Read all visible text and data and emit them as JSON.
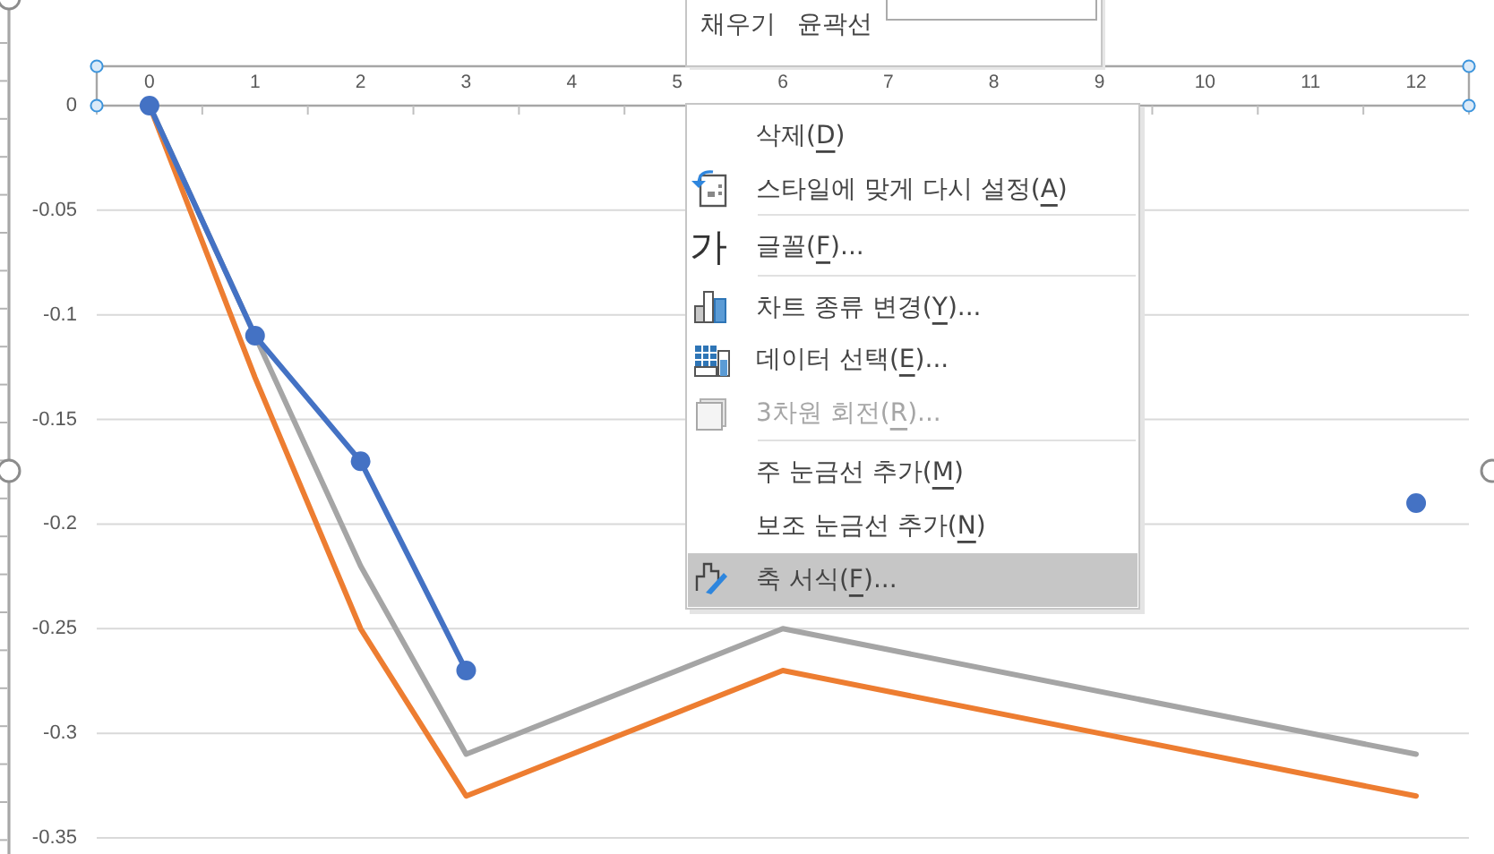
{
  "chart_data": {
    "type": "line",
    "x": [
      0,
      1,
      2,
      3,
      6,
      12
    ],
    "xlim": [
      -0.5,
      12.5
    ],
    "xticks": [
      {
        "value": -0.5,
        "label": null
      },
      0,
      {
        "value": 0.5,
        "label": null
      },
      1,
      {
        "value": 1.5,
        "label": null
      },
      2,
      {
        "value": 2.5,
        "label": null
      },
      3,
      {
        "value": 3.5,
        "label": null
      },
      4,
      {
        "value": 4.5,
        "label": null
      },
      5,
      {
        "value": 5.5,
        "label": null
      },
      6,
      {
        "value": 6.5,
        "label": null
      },
      7,
      {
        "value": 7.5,
        "label": null
      },
      8,
      {
        "value": 8.5,
        "label": null
      },
      9,
      {
        "value": 9.5,
        "label": null
      },
      10,
      {
        "value": 10.5,
        "label": null
      },
      11,
      {
        "value": 11.5,
        "label": null
      },
      12,
      {
        "value": 12.5,
        "label": null
      }
    ],
    "ylim": [
      -0.35,
      0
    ],
    "yticks": [
      0,
      -0.05,
      -0.1,
      -0.15,
      -0.2,
      -0.25,
      -0.3,
      -0.35
    ],
    "grid": "y",
    "series": [
      {
        "color": "#4472c4",
        "marker": "circle",
        "values": [
          0,
          -0.11,
          -0.17,
          -0.27,
          null,
          -0.19
        ]
      },
      {
        "color": "#ed7d31",
        "values": [
          0,
          -0.13,
          -0.25,
          -0.33,
          -0.27,
          -0.33
        ]
      },
      {
        "color": "#a5a5a5",
        "values": [
          0,
          -0.11,
          -0.22,
          -0.31,
          -0.25,
          -0.31
        ]
      }
    ],
    "annotations": [
      "채우기",
      "윤곽선",
      "삭제(D)",
      "스타일에 맞게 다시 설정(A)",
      "가",
      "글꼴(F)...",
      "차트 종류 변경(Y)...",
      "데이터 선택(E)...",
      "3차원 회전(R)...",
      "주 눈금선 추가(M)",
      "보조 눈금선 추가(N)",
      "축 서식(F)..."
    ]
  }
}
